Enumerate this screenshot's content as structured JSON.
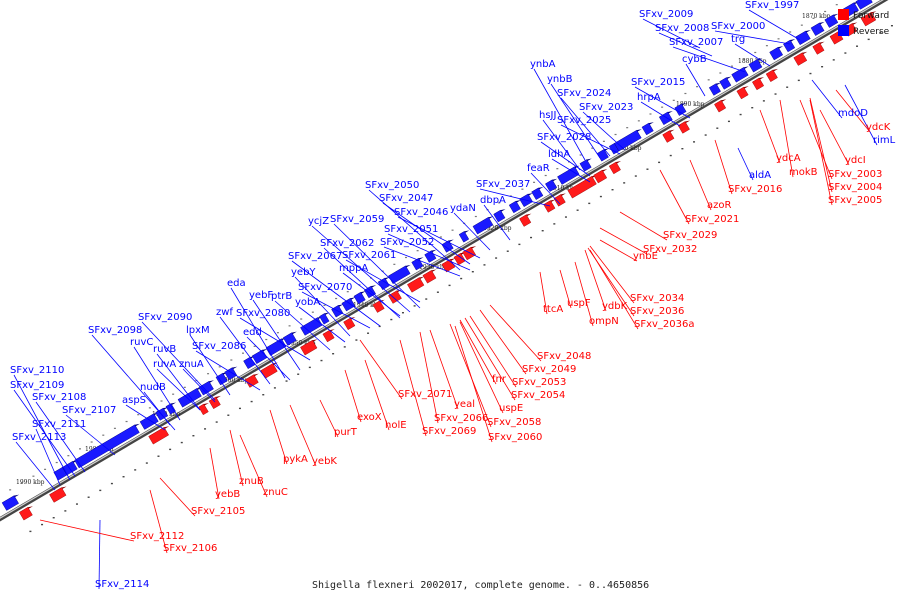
{
  "colors": {
    "forward": "#ff0000",
    "reverse": "#0000ff",
    "dark_forward": "#a00000",
    "dark_reverse": "#0000a0",
    "backbone": "#555555"
  },
  "legend": {
    "forward": "Forward",
    "reverse": "Reverse"
  },
  "caption": "Shigella flexneri 2002017, complete genome. - 0..4650856",
  "ticks": [
    "1870 kbp",
    "1880 kbp",
    "1890 kbp",
    "1900 kbp",
    "1910 kbp",
    "1920 kbp",
    "1930 kbp",
    "1940 kbp",
    "1950 kbp",
    "1960 kbp",
    "1970 kbp",
    "1980 kbp",
    "1990 kbp"
  ],
  "reverse_genes": [
    "SFxv_1997",
    "SFxv_2009",
    "SFxv_2008",
    "SFxv_2000",
    "SFxv_2007",
    "trg",
    "cybB",
    "SFxv_2015",
    "hrpA",
    "ynbA",
    "ynbB",
    "SFxv_2024",
    "SFxv_2023",
    "SFxv_2025",
    "hsJJ",
    "SFxv_2028",
    "ldhA",
    "feaR",
    "SFxv_2037",
    "dbpA",
    "SFxv_2050",
    "SFxv_2047",
    "ydaN",
    "SFxv_2046",
    "ycjZ",
    "SFxv_2059",
    "SFxv_2051",
    "SFxv_2062",
    "SFxv_2052",
    "SFxv_2061",
    "SFxv_2067",
    "mppA",
    "eda",
    "yebY",
    "SFxv_2070",
    "yebF",
    "ptrB",
    "yobA",
    "zwf",
    "SFxv_2080",
    "SFxv_2090",
    "edd",
    "SFxv_2098",
    "lpxM",
    "ruvC",
    "ruvB",
    "SFxv_2086",
    "ruvA",
    "znuA",
    "SFxv_2110",
    "SFxv_2109",
    "nudB",
    "SFxv_2108",
    "aspS",
    "SFxv_2111",
    "SFxv_2107",
    "SFxv_2113",
    "SFxv_2114",
    "aldA",
    "mdoD",
    "rimL"
  ],
  "forward_genes": [
    "ydcK",
    "ydcI",
    "ydcA",
    "mokB",
    "SFxv_2003",
    "SFxv_2004",
    "SFxv_2005",
    "SFxv_2016",
    "azoR",
    "SFxv_2021",
    "SFxv_2029",
    "SFxv_2032",
    "ynbE",
    "SFxv_2034",
    "ydbK",
    "SFxv_2036",
    "SFxv_2036a",
    "ttcA",
    "uspF",
    "ompN",
    "SFxv_2048",
    "SFxv_2049",
    "SFxv_2053",
    "fnr",
    "SFxv_2054",
    "yeal",
    "uspE",
    "SFxv_2071",
    "SFxv_2066",
    "SFxv_2058",
    "SFxv_2069",
    "SFxv_2060",
    "holE",
    "exoX",
    "purT",
    "pykA",
    "yebK",
    "znuB",
    "znuC",
    "yebB",
    "SFxv_2105",
    "SFxv_2112",
    "SFxv_2106"
  ]
}
